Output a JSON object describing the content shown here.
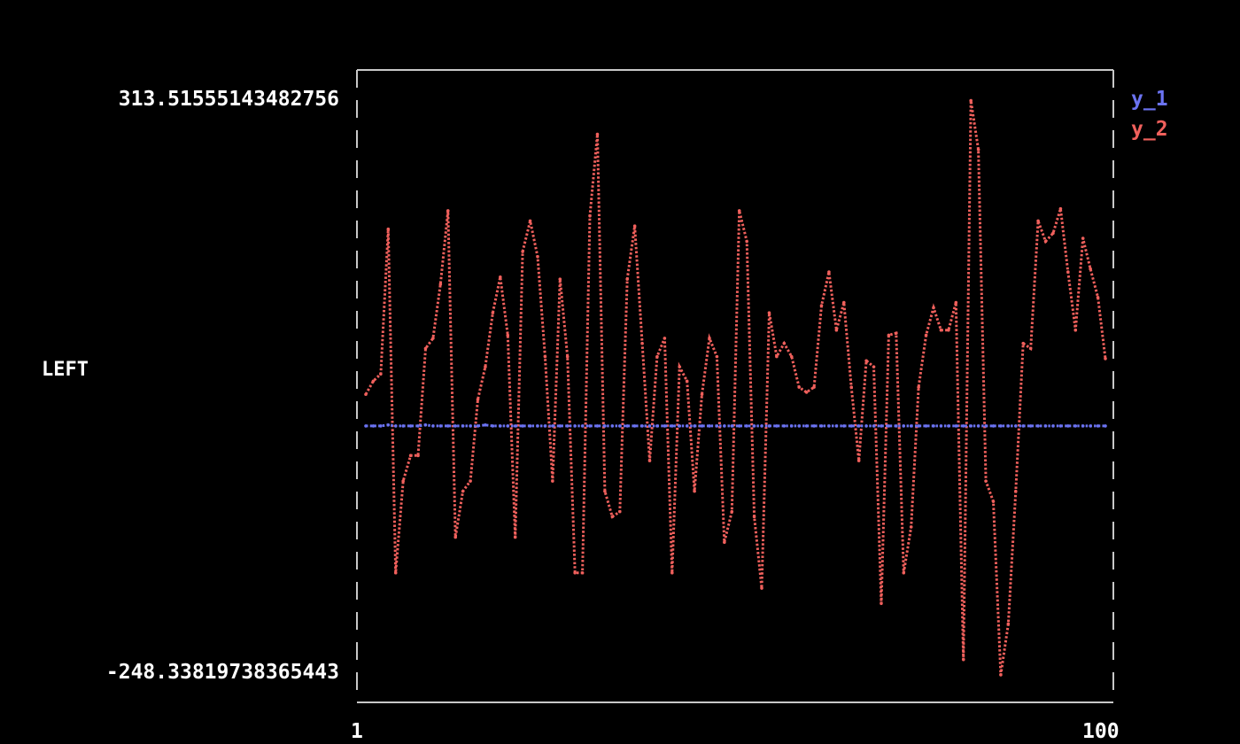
{
  "chart_data": {
    "type": "line",
    "title": "",
    "xlabel": "",
    "ylabel": "LEFT",
    "xlim": [
      1,
      100
    ],
    "ylim": [
      -248.33819738365443,
      313.51555143482756
    ],
    "x_tick_labels": [
      "1",
      "100"
    ],
    "y_tick_labels": [
      "313.51555143482756",
      "-248.33819738365443"
    ],
    "legend_position": "top-right",
    "grid": false,
    "series": [
      {
        "name": "y_1",
        "color": "#6b73f2",
        "values": [
          -6,
          -6,
          -6,
          -5,
          -6,
          -6,
          -6,
          -6,
          -5,
          -6,
          -6,
          -6,
          -6,
          -6,
          -6,
          -6,
          -5,
          -6,
          -6,
          -6,
          -6,
          -6,
          -6,
          -6,
          -6,
          -6,
          -6,
          -6,
          -6,
          -6,
          -6,
          -6,
          -6,
          -6,
          -6,
          -6,
          -6,
          -6,
          -6,
          -6,
          -6,
          -6,
          -6,
          -6,
          -6,
          -6,
          -6,
          -6,
          -6,
          -6,
          -6,
          -6,
          -6,
          -6,
          -6,
          -6,
          -6,
          -6,
          -6,
          -6,
          -6,
          -6,
          -6,
          -6,
          -6,
          -6,
          -6,
          -6,
          -6,
          -6,
          -6,
          -6,
          -6,
          -6,
          -6,
          -6,
          -6,
          -6,
          -6,
          -6,
          -6,
          -6,
          -6,
          -6,
          -6,
          -6,
          -6,
          -6,
          -6,
          -6,
          -6,
          -6,
          -6,
          -6,
          -6,
          -6,
          -6,
          -6,
          -6,
          -6
        ]
      },
      {
        "name": "y_2",
        "color": "#f0605c",
        "values": [
          25,
          38,
          45,
          187,
          -150,
          -60,
          -35,
          -35,
          70,
          80,
          133,
          205,
          -115,
          -70,
          -60,
          20,
          52,
          105,
          140,
          83,
          -115,
          165,
          195,
          160,
          62,
          -60,
          138,
          62,
          -150,
          -150,
          200,
          280,
          -70,
          -95,
          -90,
          138,
          190,
          75,
          -40,
          62,
          80,
          -150,
          52,
          38,
          -70,
          25,
          80,
          62,
          -120,
          -90,
          205,
          175,
          -95,
          -165,
          105,
          62,
          75,
          62,
          32,
          27,
          32,
          112,
          145,
          88,
          115,
          32,
          -40,
          58,
          52,
          -180,
          83,
          85,
          -150,
          -105,
          32,
          83,
          110,
          88,
          88,
          115,
          -235,
          313,
          265,
          -60,
          -80,
          -250,
          -200,
          -70,
          75,
          70,
          195,
          175,
          183,
          207,
          145,
          88,
          178,
          148,
          120,
          60
        ]
      }
    ]
  },
  "labels": {
    "ymax": "313.51555143482756",
    "ymin": "-248.33819738365443",
    "ylabel": "LEFT",
    "xmin": "1",
    "xmax": "100",
    "legend": [
      "y_1",
      "y_2"
    ]
  }
}
